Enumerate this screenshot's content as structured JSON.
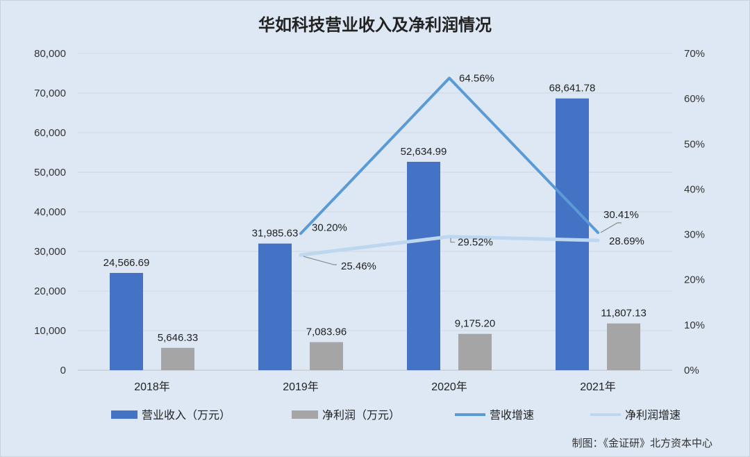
{
  "chart_data": {
    "type": "bar",
    "title": "华如科技营业收入及净利润情况",
    "categories": [
      "2018年",
      "2019年",
      "2020年",
      "2021年"
    ],
    "y_left": {
      "ylim": [
        0,
        80000
      ],
      "ticks": [
        "0",
        "10,000",
        "20,000",
        "30,000",
        "40,000",
        "50,000",
        "60,000",
        "70,000",
        "80,000"
      ]
    },
    "y_right": {
      "ylim": [
        0,
        70
      ],
      "ticks": [
        "0%",
        "10%",
        "20%",
        "30%",
        "40%",
        "50%",
        "60%",
        "70%"
      ]
    },
    "series": [
      {
        "name": "营业收入（万元）",
        "type": "bar",
        "axis": "left",
        "color": "#4472c4",
        "values": [
          24566.69,
          31985.63,
          52634.99,
          68641.78
        ],
        "labels": [
          "24,566.69",
          "31,985.63",
          "52,634.99",
          "68,641.78"
        ]
      },
      {
        "name": "净利润（万元）",
        "type": "bar",
        "axis": "left",
        "color": "#a5a5a5",
        "values": [
          5646.33,
          7083.96,
          9175.2,
          11807.13
        ],
        "labels": [
          "5,646.33",
          "7,083.96",
          "9,175.20",
          "11,807.13"
        ]
      },
      {
        "name": "营收增速",
        "type": "line",
        "axis": "right",
        "color": "#5b9bd5",
        "values": [
          null,
          30.2,
          64.56,
          30.41
        ],
        "labels": [
          "",
          "30.20%",
          "64.56%",
          "30.41%"
        ]
      },
      {
        "name": "净利润增速",
        "type": "line",
        "axis": "right",
        "color": "#bdd7ee",
        "values": [
          null,
          25.46,
          29.52,
          28.69
        ],
        "labels": [
          "",
          "25.46%",
          "29.52%",
          "28.69%"
        ]
      }
    ],
    "legend_position": "bottom",
    "grid": true
  },
  "credit": "制图：《金证研》北方资本中心"
}
